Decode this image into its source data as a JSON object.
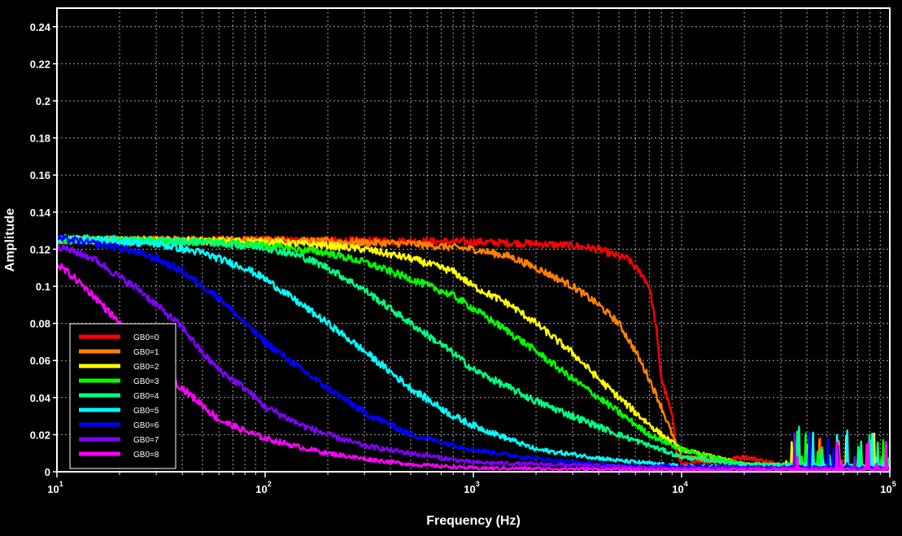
{
  "chart_data": {
    "type": "line",
    "title": "",
    "xlabel": "Frequency (Hz)",
    "ylabel": "Amplitude",
    "x_scale": "log",
    "xlim": [
      10,
      100000
    ],
    "ylim": [
      0,
      0.25
    ],
    "x_ticks": [
      10,
      100,
      1000,
      10000,
      100000
    ],
    "x_tick_labels": [
      {
        "base": "10",
        "exp": "1"
      },
      {
        "base": "10",
        "exp": "2"
      },
      {
        "base": "10",
        "exp": "3"
      },
      {
        "base": "10",
        "exp": "4"
      },
      {
        "base": "10",
        "exp": "5"
      }
    ],
    "y_ticks": [
      0,
      0.02,
      0.04,
      0.06,
      0.08,
      0.1,
      0.12,
      0.14,
      0.16,
      0.18,
      0.2,
      0.22,
      0.24
    ],
    "y_tick_labels": [
      "0",
      "0.02",
      "0.04",
      "0.06",
      "0.08",
      "0.1",
      "0.12",
      "0.14",
      "0.16",
      "0.18",
      "0.2",
      "0.22",
      "0.24"
    ],
    "grid": true,
    "background": "#000000",
    "legend_position": "bottom-left",
    "series": [
      {
        "name": "GB0=0",
        "color": "#ff0000",
        "x": [
          10,
          100,
          1000,
          2000,
          3000,
          4000,
          5000,
          5500,
          6000,
          6500,
          7000,
          7500,
          8000,
          8500,
          9000,
          9500,
          10000,
          15000,
          20000,
          30000,
          50000,
          100000
        ],
        "y": [
          0.125,
          0.125,
          0.124,
          0.123,
          0.122,
          0.12,
          0.116,
          0.115,
          0.11,
          0.106,
          0.1,
          0.08,
          0.05,
          0.04,
          0.03,
          0.01,
          0.004,
          0.006,
          0.008,
          0.004,
          0.003,
          0.003
        ]
      },
      {
        "name": "GB0=1",
        "color": "#ff8000",
        "x": [
          10,
          100,
          500,
          1000,
          1500,
          2000,
          3000,
          4000,
          5000,
          6000,
          7000,
          8000,
          9000,
          10000,
          20000,
          50000,
          100000
        ],
        "y": [
          0.125,
          0.125,
          0.123,
          0.12,
          0.116,
          0.11,
          0.1,
          0.09,
          0.08,
          0.065,
          0.05,
          0.035,
          0.02,
          0.008,
          0.004,
          0.003,
          0.003
        ]
      },
      {
        "name": "GB0=2",
        "color": "#ffff00",
        "x": [
          10,
          100,
          200,
          300,
          500,
          800,
          1000,
          1500,
          2000,
          3000,
          4000,
          5000,
          6000,
          8000,
          10000,
          20000,
          50000,
          100000
        ],
        "y": [
          0.125,
          0.124,
          0.122,
          0.12,
          0.115,
          0.108,
          0.1,
          0.09,
          0.08,
          0.064,
          0.05,
          0.04,
          0.032,
          0.02,
          0.012,
          0.004,
          0.003,
          0.003
        ]
      },
      {
        "name": "GB0=3",
        "color": "#00ff00",
        "x": [
          10,
          50,
          100,
          200,
          300,
          500,
          800,
          1000,
          1500,
          2000,
          3000,
          4000,
          5000,
          7000,
          10000,
          20000,
          50000,
          100000
        ],
        "y": [
          0.125,
          0.124,
          0.122,
          0.118,
          0.113,
          0.104,
          0.095,
          0.088,
          0.075,
          0.065,
          0.05,
          0.04,
          0.032,
          0.02,
          0.012,
          0.004,
          0.003,
          0.003
        ]
      },
      {
        "name": "GB0=4",
        "color": "#00ff80",
        "x": [
          10,
          50,
          100,
          150,
          200,
          300,
          500,
          800,
          1000,
          1500,
          2000,
          3000,
          5000,
          10000,
          20000,
          100000
        ],
        "y": [
          0.126,
          0.124,
          0.121,
          0.116,
          0.11,
          0.098,
          0.08,
          0.064,
          0.055,
          0.045,
          0.038,
          0.03,
          0.02,
          0.008,
          0.004,
          0.003
        ]
      },
      {
        "name": "GB0=5",
        "color": "#00ffff",
        "x": [
          10,
          30,
          50,
          80,
          100,
          150,
          200,
          300,
          500,
          800,
          1000,
          2000,
          5000,
          10000,
          100000
        ],
        "y": [
          0.126,
          0.123,
          0.118,
          0.11,
          0.104,
          0.09,
          0.08,
          0.065,
          0.045,
          0.03,
          0.025,
          0.012,
          0.006,
          0.003,
          0.002
        ]
      },
      {
        "name": "GB0=6",
        "color": "#0000ff",
        "x": [
          10,
          20,
          30,
          40,
          50,
          60,
          80,
          100,
          150,
          200,
          300,
          500,
          1000,
          2000,
          5000,
          10000,
          100000
        ],
        "y": [
          0.126,
          0.121,
          0.115,
          0.108,
          0.1,
          0.094,
          0.08,
          0.07,
          0.055,
          0.045,
          0.032,
          0.02,
          0.012,
          0.007,
          0.003,
          0.003,
          0.002
        ]
      },
      {
        "name": "GB0=7",
        "color": "#8000ff",
        "x": [
          10,
          15,
          20,
          25,
          30,
          40,
          50,
          60,
          80,
          100,
          150,
          200,
          300,
          500,
          1000,
          10000,
          100000
        ],
        "y": [
          0.122,
          0.115,
          0.105,
          0.098,
          0.09,
          0.078,
          0.064,
          0.055,
          0.045,
          0.035,
          0.025,
          0.02,
          0.014,
          0.01,
          0.005,
          0.002,
          0.002
        ]
      },
      {
        "name": "GB0=8",
        "color": "#ff00ff",
        "x": [
          10,
          12,
          15,
          20,
          25,
          30,
          40,
          50,
          60,
          80,
          100,
          150,
          200,
          300,
          500,
          1000,
          10000,
          100000
        ],
        "y": [
          0.112,
          0.105,
          0.095,
          0.08,
          0.066,
          0.058,
          0.045,
          0.036,
          0.028,
          0.022,
          0.018,
          0.013,
          0.01,
          0.007,
          0.004,
          0.002,
          0.001,
          0.001
        ]
      }
    ]
  }
}
